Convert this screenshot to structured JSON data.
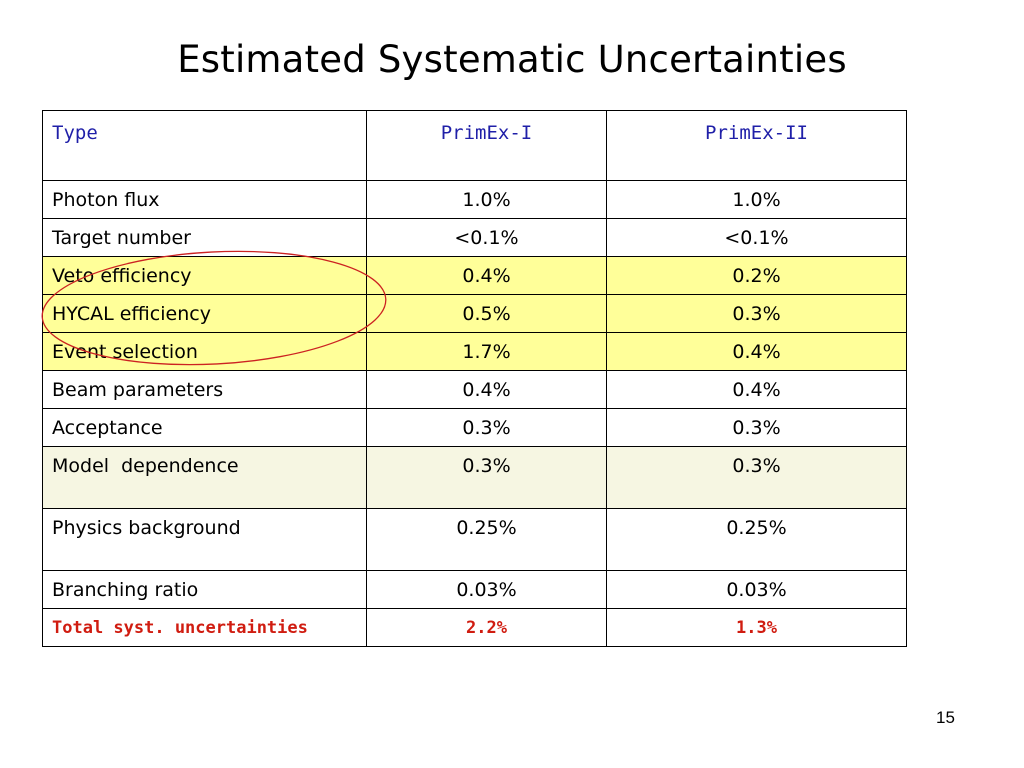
{
  "slide": {
    "title": "Estimated Systematic Uncertainties",
    "page_number": "15"
  },
  "table": {
    "headers": [
      "Type",
      "PrimEx-I",
      "PrimEx-II"
    ],
    "rows": [
      {
        "type": "Photon flux",
        "primex1": "1.0%",
        "primex2": "1.0%"
      },
      {
        "type": "Target number",
        "primex1": "<0.1%",
        "primex2": "<0.1%"
      },
      {
        "type": "Veto efficiency",
        "primex1": "0.4%",
        "primex2": "0.2%"
      },
      {
        "type": "HYCAL efficiency",
        "primex1": "0.5%",
        "primex2": "0.3%"
      },
      {
        "type": "Event selection",
        "primex1": "1.7%",
        "primex2": "0.4%"
      },
      {
        "type": "Beam parameters",
        "primex1": "0.4%",
        "primex2": "0.4%"
      },
      {
        "type": "Acceptance",
        "primex1": "0.3%",
        "primex2": "0.3%"
      },
      {
        "type": "Model  dependence",
        "primex1": "0.3%",
        "primex2": "0.3%"
      },
      {
        "type": "Physics background",
        "primex1": "0.25%",
        "primex2": "0.25%"
      },
      {
        "type": "Branching ratio",
        "primex1": "0.03%",
        "primex2": "0.03%"
      }
    ],
    "total": {
      "type": "Total syst. uncertainties",
      "primex1": "2.2%",
      "primex2": "1.3%"
    }
  },
  "colors": {
    "header_text": "#1f1fa8",
    "total_text": "#d01c10",
    "highlight_yellow": "#ffff99",
    "highlight_beige": "#f6f6e2",
    "annotation_ellipse": "#cc2222"
  }
}
